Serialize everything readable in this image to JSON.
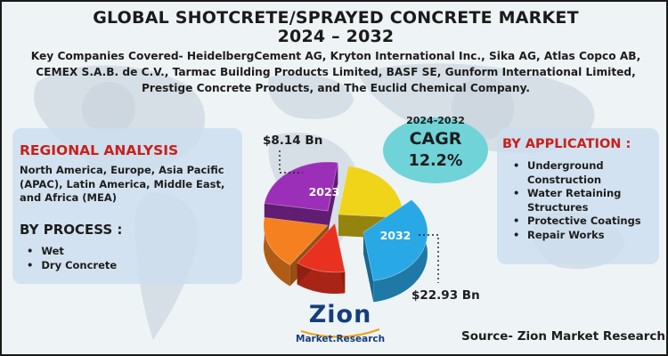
{
  "title_line1": "GLOBAL SHOTCRETE/SPRAYED CONCRETE MARKET",
  "title_line2": "2024 – 2032",
  "companies_text": "Key Companies Covered- HeidelbergCement AG, Kryton International Inc., Sika AG, Atlas Copco AB, CEMEX S.A.B. de C.V., Tarmac Building Products Limited, BASF SE, Gunform International Limited, Prestige Concrete Products, and The Euclid Chemical Company.",
  "regional": {
    "heading": "REGIONAL ANALYSIS",
    "text": "North America, Europe, Asia Pacific (APAC), Latin America, Middle East, and Africa (MEA)"
  },
  "process": {
    "heading": "BY PROCESS :",
    "items": [
      "Wet",
      "Dry Concrete"
    ]
  },
  "application": {
    "heading": "BY APPLICATION :",
    "items": [
      "Underground Construction",
      "Water Retaining Structures",
      "Protective Coatings",
      "Repair Works"
    ]
  },
  "cagr": {
    "years": "2024-2032",
    "label": "CAGR",
    "value": "12.2%"
  },
  "chart_data": {
    "type": "pie",
    "labels": [
      "2023",
      "2032"
    ],
    "values": [
      8.14,
      22.93
    ],
    "value_labels": [
      "$8.14 Bn",
      "$22.93 Bn"
    ],
    "colors": [
      "#9b2fb8",
      "#29a8e6"
    ],
    "other_slice_colors": [
      "#f0d419",
      "#e8321f",
      "#f4801f"
    ]
  },
  "source": "Source- Zion Market Research",
  "logo": {
    "name": "Zion",
    "sub": "Market.Research"
  },
  "colors": {
    "red_heading": "#c8201a",
    "panel": "#cddeee",
    "cagr_oval": "#6fd3d8",
    "logo_blue": "#143e7c"
  }
}
